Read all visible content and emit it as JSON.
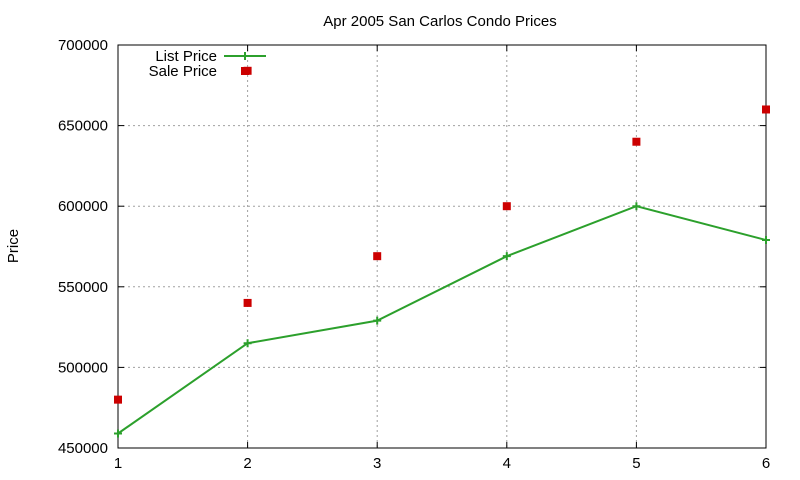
{
  "chart_data": {
    "type": "line",
    "title": "Apr 2005 San Carlos Condo Prices",
    "xlabel": "",
    "ylabel": "Price",
    "x": [
      1,
      2,
      3,
      4,
      5,
      6
    ],
    "xticks": [
      "1",
      "2",
      "3",
      "4",
      "5",
      "6"
    ],
    "xlim": [
      1,
      6
    ],
    "ylim": [
      450000,
      700000
    ],
    "yticks": [
      "450000",
      "500000",
      "550000",
      "600000",
      "650000",
      "700000"
    ],
    "yticks_values": [
      450000,
      500000,
      550000,
      600000,
      650000,
      700000
    ],
    "grid": true,
    "legend_position": "top-left",
    "series": [
      {
        "name": "List Price",
        "style": "line-points",
        "color": "#2ca02c",
        "values": [
          459000,
          515000,
          529000,
          569000,
          600000,
          579000
        ]
      },
      {
        "name": "Sale Price",
        "style": "points",
        "color": "#cc0000",
        "values": [
          480000,
          540000,
          569000,
          600000,
          640000,
          660000
        ]
      }
    ],
    "extra_points": [
      {
        "series": "Sale Price",
        "x": 2,
        "y": 684000
      }
    ]
  }
}
